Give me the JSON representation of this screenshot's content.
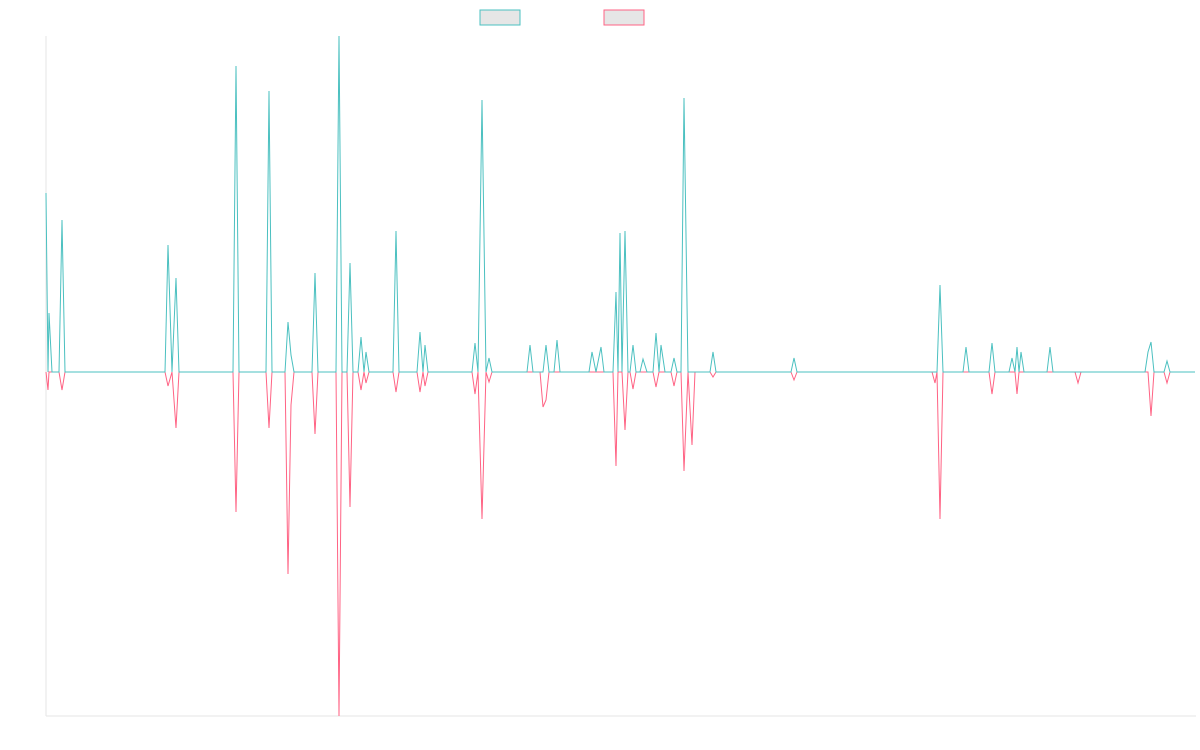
{
  "chart_data": {
    "type": "line",
    "x": [
      46,
      48,
      49,
      52,
      59,
      62,
      65,
      165,
      168,
      172,
      176,
      179,
      233,
      236,
      239,
      266,
      269,
      272,
      285,
      288,
      291,
      294,
      312,
      315,
      318,
      336,
      339,
      342,
      347,
      350,
      353,
      358,
      361,
      364,
      366,
      369,
      393,
      396,
      399,
      417,
      420,
      423,
      425,
      428,
      472,
      475,
      478,
      482,
      486,
      489,
      492,
      527,
      530,
      533,
      540,
      543,
      546,
      549,
      554,
      557,
      560,
      589,
      592,
      596,
      601,
      604,
      613,
      616,
      618,
      620,
      622,
      625,
      628,
      630,
      633,
      636,
      640,
      643,
      647,
      653,
      656,
      659,
      661,
      665,
      671,
      674,
      677,
      681,
      684,
      688,
      692,
      695,
      710,
      713,
      716,
      791,
      794,
      797,
      932,
      935,
      937,
      940,
      943,
      963,
      966,
      969,
      989,
      992,
      995,
      1009,
      1012,
      1015,
      1017,
      1019,
      1021,
      1024,
      1047,
      1050,
      1053,
      1075,
      1078,
      1081,
      1145,
      1148,
      1151,
      1154,
      1164,
      1167,
      1170,
      1195
    ],
    "series": [
      {
        "color": "#ff6384",
        "values": [
          0,
          -18,
          0,
          0,
          0,
          -18,
          0,
          0,
          -14,
          0,
          -56,
          0,
          0,
          -140,
          0,
          0,
          -56,
          0,
          0,
          -202,
          -33,
          0,
          0,
          -62,
          0,
          0,
          -344,
          0,
          0,
          -135,
          0,
          0,
          -18,
          0,
          -11,
          0,
          0,
          -20,
          0,
          0,
          -20,
          0,
          -14,
          0,
          0,
          -22,
          0,
          -147,
          0,
          -10,
          0,
          0,
          0,
          0,
          0,
          -35,
          -28,
          0,
          0,
          0,
          0,
          0,
          0,
          0,
          0,
          0,
          0,
          -94,
          0,
          0,
          0,
          -58,
          0,
          0,
          -17,
          0,
          0,
          0,
          0,
          0,
          -15,
          0,
          0,
          0,
          0,
          -14,
          0,
          0,
          -99,
          0,
          -73,
          0,
          0,
          -5,
          0,
          0,
          -8,
          0,
          0,
          -11,
          0,
          -147,
          0,
          0,
          0,
          0,
          0,
          -22,
          0,
          0,
          0,
          0,
          -22,
          0,
          0,
          0,
          0,
          0,
          0,
          0,
          -11,
          0,
          0,
          0,
          -44,
          0,
          0,
          -11,
          0,
          0
        ]
      },
      {
        "color": "#4bc0c0",
        "values": [
          179,
          0,
          59,
          0,
          0,
          152,
          0,
          0,
          127,
          0,
          94,
          0,
          0,
          306,
          0,
          0,
          281,
          0,
          0,
          50,
          17,
          0,
          0,
          99,
          0,
          0,
          336,
          0,
          0,
          109,
          0,
          0,
          35,
          0,
          20,
          0,
          0,
          141,
          0,
          0,
          40,
          0,
          27,
          0,
          0,
          29,
          0,
          272,
          0,
          14,
          0,
          0,
          27,
          0,
          0,
          0,
          27,
          0,
          0,
          32,
          0,
          0,
          20,
          0,
          25,
          0,
          0,
          80,
          0,
          139,
          0,
          141,
          0,
          0,
          27,
          0,
          0,
          13,
          0,
          0,
          39,
          0,
          27,
          0,
          0,
          14,
          0,
          0,
          274,
          0,
          0,
          0,
          0,
          20,
          0,
          0,
          14,
          0,
          0,
          0,
          0,
          87,
          0,
          0,
          25,
          0,
          0,
          29,
          0,
          0,
          14,
          0,
          25,
          0,
          20,
          0,
          0,
          25,
          0,
          0,
          0,
          0,
          0,
          20,
          30,
          0,
          0,
          11,
          0,
          0
        ]
      }
    ],
    "xlim": [
      46,
      1196
    ],
    "ylim": [
      -344,
      336
    ]
  }
}
